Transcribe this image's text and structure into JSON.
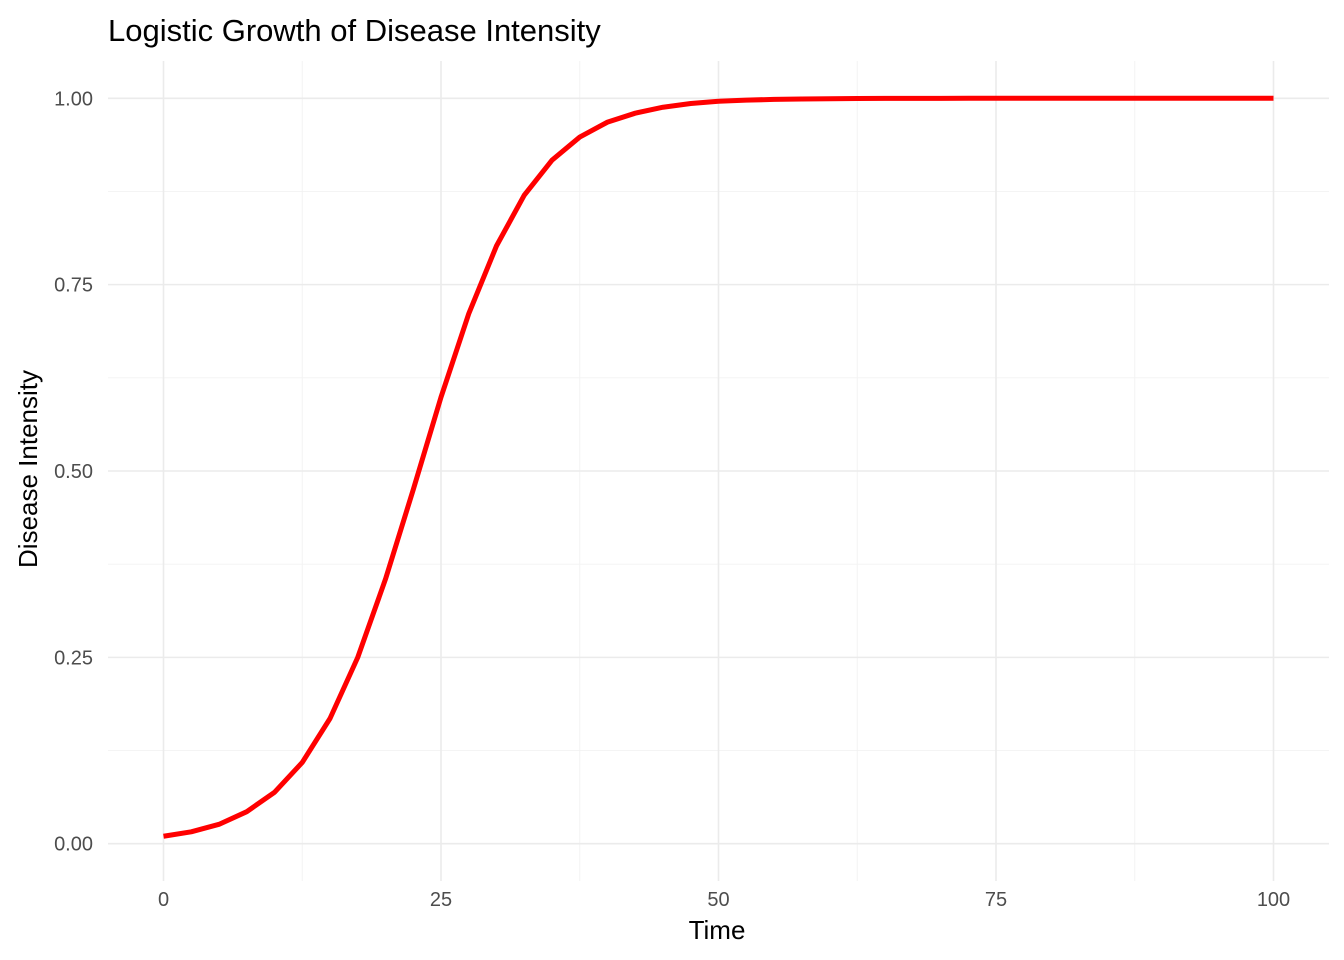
{
  "chart_data": {
    "type": "line",
    "title": "Logistic Growth of Disease Intensity",
    "xlabel": "Time",
    "ylabel": "Disease Intensity",
    "xlim": [
      -5,
      105
    ],
    "ylim": [
      -0.05,
      1.05
    ],
    "x_ticks": [
      0,
      25,
      50,
      75,
      100
    ],
    "x_tick_labels": [
      "0",
      "25",
      "50",
      "75",
      "100"
    ],
    "y_ticks": [
      0,
      0.25,
      0.5,
      0.75,
      1
    ],
    "y_tick_labels": [
      "0.00",
      "0.25",
      "0.50",
      "0.75",
      "1.00"
    ],
    "grid": true,
    "legend": "none",
    "series": [
      {
        "color": "#ff0000",
        "x": [
          0,
          2.5,
          5,
          7.5,
          10,
          12.5,
          15,
          17.5,
          20,
          22.5,
          25,
          27.5,
          30,
          32.5,
          35,
          37.5,
          40,
          42.5,
          45,
          47.5,
          50,
          52.5,
          55,
          57.5,
          60,
          62.5,
          65,
          67.5,
          70,
          72.5,
          75,
          77.5,
          80,
          82.5,
          85,
          87.5,
          90,
          92.5,
          95,
          97.5,
          100
        ],
        "values": [
          0.01,
          0.016,
          0.026,
          0.043,
          0.069,
          0.109,
          0.168,
          0.25,
          0.355,
          0.475,
          0.599,
          0.711,
          0.802,
          0.87,
          0.917,
          0.948,
          0.968,
          0.98,
          0.988,
          0.993,
          0.996,
          0.9975,
          0.9985,
          0.9991,
          0.9994,
          0.9997,
          0.9998,
          0.9999,
          0.9999,
          1.0,
          1.0,
          1.0,
          1.0,
          1.0,
          1.0,
          1.0,
          1.0,
          1.0,
          1.0,
          1.0,
          1.0
        ]
      }
    ]
  }
}
